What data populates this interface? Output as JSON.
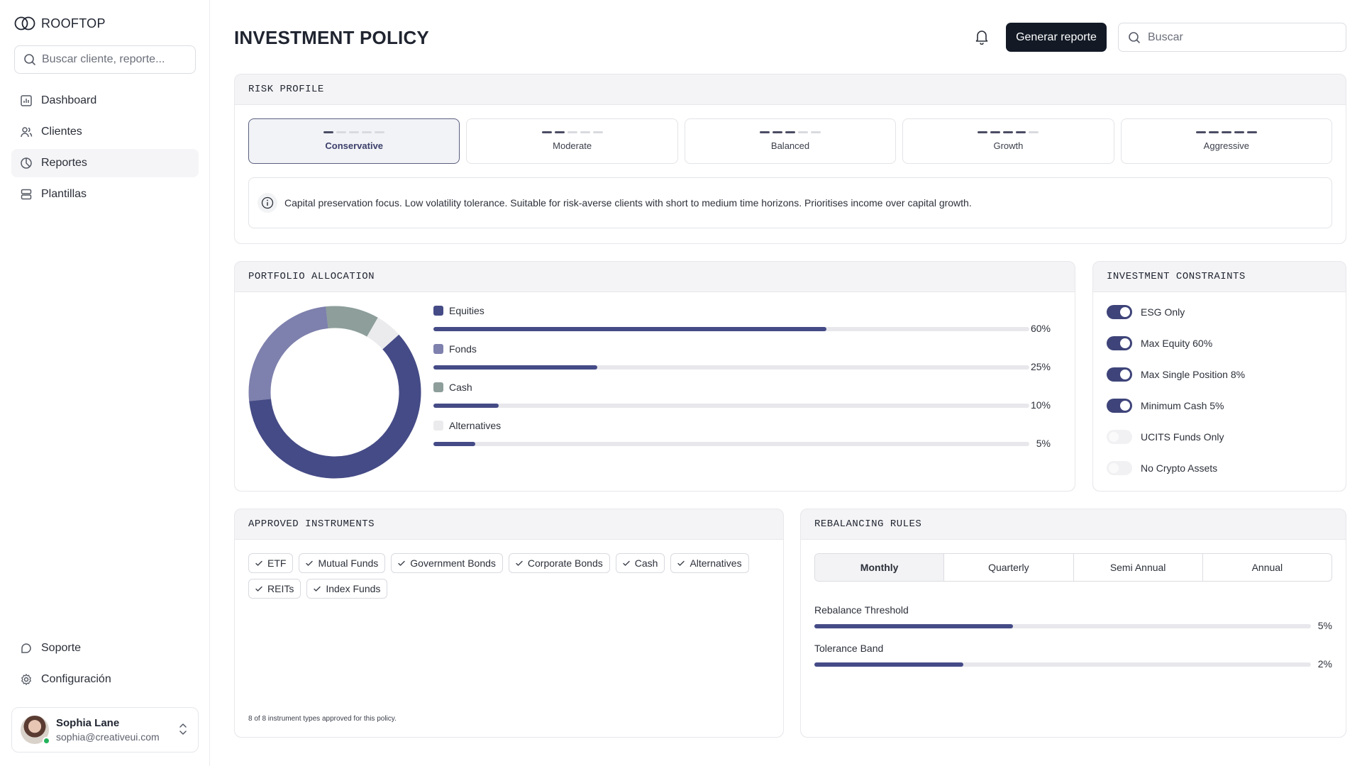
{
  "brand": {
    "name": "ROOFTOP"
  },
  "sidebar": {
    "search_placeholder": "Buscar cliente, reporte...",
    "items": [
      {
        "label": "Dashboard",
        "icon": "chart-icon"
      },
      {
        "label": "Clientes",
        "icon": "users-icon"
      },
      {
        "label": "Reportes",
        "icon": "pie-chart-icon",
        "active": true
      },
      {
        "label": "Plantillas",
        "icon": "layers-icon"
      }
    ],
    "bottom_items": [
      {
        "label": "Soporte",
        "icon": "support-icon"
      },
      {
        "label": "Configuración",
        "icon": "gear-icon"
      }
    ],
    "user": {
      "name": "Sophia Lane",
      "email": "sophia@creativeui.com"
    }
  },
  "header": {
    "title": "INVESTMENT POLICY",
    "generate_button": "Generar reporte",
    "search_placeholder": "Buscar"
  },
  "risk_profile": {
    "title": "RISK PROFILE",
    "options": [
      {
        "label": "Conservative",
        "level": 1,
        "active": true
      },
      {
        "label": "Moderate",
        "level": 2
      },
      {
        "label": "Balanced",
        "level": 3
      },
      {
        "label": "Growth",
        "level": 4
      },
      {
        "label": "Aggressive",
        "level": 5
      }
    ],
    "description": "Capital preservation focus. Low volatility tolerance. Suitable for risk-averse clients with short to medium time horizons. Prioritises income over capital growth."
  },
  "portfolio_allocation": {
    "title": "PORTFOLIO ALLOCATION",
    "items": [
      {
        "label": "Equities",
        "percent": 60,
        "percent_label": "60%",
        "color": "#454b86"
      },
      {
        "label": "Fonds",
        "percent": 25,
        "percent_label": "25%",
        "color": "#7e80ad"
      },
      {
        "label": "Cash",
        "percent": 10,
        "percent_label": "10%",
        "color": "#8d9e9b"
      },
      {
        "label": "Alternatives",
        "percent": 5,
        "percent_label": "5%",
        "color": "#ebebee"
      }
    ]
  },
  "constraints": {
    "title": "INVESTMENT CONSTRAINTS",
    "items": [
      {
        "label": "ESG Only",
        "on": true
      },
      {
        "label": "Max Equity 60%",
        "on": true
      },
      {
        "label": "Max Single Position 8%",
        "on": true
      },
      {
        "label": "Minimum Cash 5%",
        "on": true
      },
      {
        "label": "UCITS Funds Only",
        "on": false
      },
      {
        "label": "No Crypto Assets",
        "on": false
      }
    ]
  },
  "instruments": {
    "title": "APPROVED INSTRUMENTS",
    "items": [
      "ETF",
      "Mutual Funds",
      "Government Bonds",
      "Corporate Bonds",
      "Cash",
      "Alternatives",
      "REITs",
      "Index Funds"
    ],
    "footnote": "8 of 8 instrument types approved for this policy."
  },
  "rebalancing": {
    "title": "REBALANCING RULES",
    "tabs": [
      {
        "label": "Monthly",
        "active": true
      },
      {
        "label": "Quarterly"
      },
      {
        "label": "Semi Annual"
      },
      {
        "label": "Annual"
      }
    ],
    "rules": [
      {
        "label": "Rebalance Threshold",
        "value_label": "5%",
        "fill_fraction": 0.4
      },
      {
        "label": "Tolerance Band",
        "value_label": "2%",
        "fill_fraction": 0.3
      }
    ]
  },
  "colors": {
    "accent": "#454b86",
    "primary_button": "#131a26"
  }
}
